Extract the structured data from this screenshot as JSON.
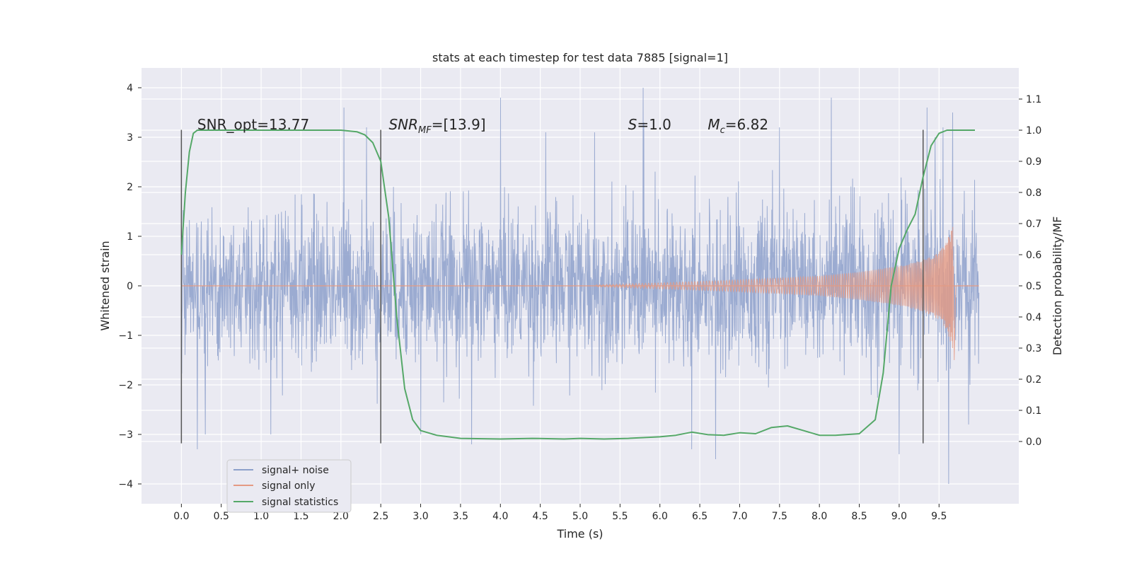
{
  "chart_data": {
    "type": "line",
    "title": "stats at each timestep for test data 7885 [signal=1]",
    "xlabel": "Time (s)",
    "ylabel": "Whitened strain",
    "y2label": "Detection probability/MF",
    "xlim": [
      -0.5,
      10.5
    ],
    "ylim": [
      -4.4,
      4.4
    ],
    "y2lim": [
      -0.2,
      1.2
    ],
    "grid": true,
    "legend_position": "lower-left",
    "x_ticks": [
      0.0,
      0.5,
      1.0,
      1.5,
      2.0,
      2.5,
      3.0,
      3.5,
      4.0,
      4.5,
      5.0,
      5.5,
      6.0,
      6.5,
      7.0,
      7.5,
      8.0,
      8.5,
      9.0,
      9.5
    ],
    "x_tick_labels": [
      "0.0",
      "0.5",
      "1.0",
      "1.5",
      "2.0",
      "2.5",
      "3.0",
      "3.5",
      "4.0",
      "4.5",
      "5.0",
      "5.5",
      "6.0",
      "6.5",
      "7.0",
      "7.5",
      "8.0",
      "8.5",
      "9.0",
      "9.5"
    ],
    "y_ticks": [
      4,
      3,
      2,
      1,
      0,
      -1,
      -2,
      -3,
      -4
    ],
    "y_tick_labels": [
      "4",
      "3",
      "2",
      "1",
      "0",
      "−1",
      "−2",
      "−3",
      "−4"
    ],
    "y2_ticks": [
      1.1,
      1.0,
      0.9,
      0.8,
      0.7,
      0.6,
      0.5,
      0.4,
      0.3,
      0.2,
      0.1,
      0.0
    ],
    "y2_tick_labels": [
      "1.1",
      "1.0",
      "0.9",
      "0.8",
      "0.7",
      "0.6",
      "0.5",
      "0.4",
      "0.3",
      "0.2",
      "0.1",
      "0.0"
    ],
    "annotations": [
      {
        "id": "snr-opt",
        "text": "SNR_opt=13.77",
        "x": 0.2
      },
      {
        "id": "snr-mf",
        "text": "SNR",
        "sub": "MF",
        "rest": "=[13.9]",
        "x": 2.6
      },
      {
        "id": "s",
        "text": "S",
        "rest": "=1.0",
        "x": 5.6
      },
      {
        "id": "mc",
        "text": "M",
        "sub": "c",
        "rest": "=6.82",
        "x": 6.6
      }
    ],
    "annotation_y": 3.2,
    "vertical_markers": [
      0.0,
      2.5,
      9.3
    ],
    "series": [
      {
        "name": "signal+ noise",
        "color": "#8da0cb",
        "kind": "noise",
        "t_start": 0.0,
        "t_end": 10.0,
        "envelope": 1.25,
        "typical_max": 2.5,
        "extremes": [
          {
            "x": 0.2,
            "y": 2.6
          },
          {
            "x": 0.2,
            "y": -3.3
          },
          {
            "x": 0.3,
            "y": -3.0
          },
          {
            "x": 1.12,
            "y": -3.0
          },
          {
            "x": 2.04,
            "y": 3.6
          },
          {
            "x": 2.32,
            "y": 3.2
          },
          {
            "x": 3.0,
            "y": -3.0
          },
          {
            "x": 3.64,
            "y": -3.2
          },
          {
            "x": 4.0,
            "y": 3.8
          },
          {
            "x": 4.57,
            "y": 3.1
          },
          {
            "x": 5.18,
            "y": 3.1
          },
          {
            "x": 5.79,
            "y": 4.0
          },
          {
            "x": 5.8,
            "y": 3.3
          },
          {
            "x": 6.4,
            "y": -3.3
          },
          {
            "x": 6.7,
            "y": -3.5
          },
          {
            "x": 7.5,
            "y": 3.2
          },
          {
            "x": 8.15,
            "y": 3.8
          },
          {
            "x": 9.35,
            "y": 3.6
          },
          {
            "x": 9.45,
            "y": 3.0
          },
          {
            "x": 9.55,
            "y": 3.2
          },
          {
            "x": 9.62,
            "y": -4.0
          },
          {
            "x": 9.67,
            "y": 3.5
          },
          {
            "x": 9.0,
            "y": -3.4
          },
          {
            "x": 9.87,
            "y": -2.8
          }
        ]
      },
      {
        "name": "signal only",
        "color": "#e49a83",
        "kind": "chirp",
        "t_start": 5.2,
        "t_merge": 9.68,
        "amp_start": 0.02,
        "amp_peak": 1.35,
        "points": [
          {
            "x": 5.2,
            "y": 0.02
          },
          {
            "x": 6.0,
            "y": 0.06
          },
          {
            "x": 7.0,
            "y": 0.12
          },
          {
            "x": 8.0,
            "y": 0.2
          },
          {
            "x": 8.5,
            "y": 0.28
          },
          {
            "x": 9.0,
            "y": 0.4
          },
          {
            "x": 9.3,
            "y": 0.52
          },
          {
            "x": 9.5,
            "y": 0.68
          },
          {
            "x": 9.6,
            "y": 0.9
          },
          {
            "x": 9.68,
            "y": 1.35
          }
        ]
      },
      {
        "name": "signal statistics",
        "color": "#55a868",
        "axis": "right",
        "x": [
          0.0,
          0.05,
          0.1,
          0.15,
          0.2,
          0.3,
          0.5,
          1.0,
          1.5,
          2.0,
          2.2,
          2.3,
          2.4,
          2.5,
          2.6,
          2.7,
          2.8,
          2.9,
          3.0,
          3.2,
          3.5,
          4.0,
          4.4,
          4.8,
          5.0,
          5.3,
          5.6,
          6.0,
          6.2,
          6.4,
          6.6,
          6.8,
          7.0,
          7.2,
          7.4,
          7.6,
          7.8,
          8.0,
          8.2,
          8.5,
          8.7,
          8.8,
          8.9,
          9.0,
          9.1,
          9.2,
          9.3,
          9.4,
          9.5,
          9.6,
          9.8,
          9.95
        ],
        "y": [
          0.6,
          0.8,
          0.93,
          0.99,
          1.0,
          1.0,
          1.0,
          1.0,
          1.0,
          1.0,
          0.995,
          0.985,
          0.96,
          0.9,
          0.72,
          0.4,
          0.17,
          0.07,
          0.035,
          0.02,
          0.01,
          0.008,
          0.01,
          0.008,
          0.01,
          0.008,
          0.01,
          0.015,
          0.02,
          0.03,
          0.022,
          0.02,
          0.028,
          0.025,
          0.045,
          0.05,
          0.035,
          0.02,
          0.02,
          0.025,
          0.07,
          0.22,
          0.5,
          0.62,
          0.68,
          0.73,
          0.85,
          0.95,
          0.99,
          1.0,
          1.0,
          1.0
        ]
      }
    ]
  }
}
